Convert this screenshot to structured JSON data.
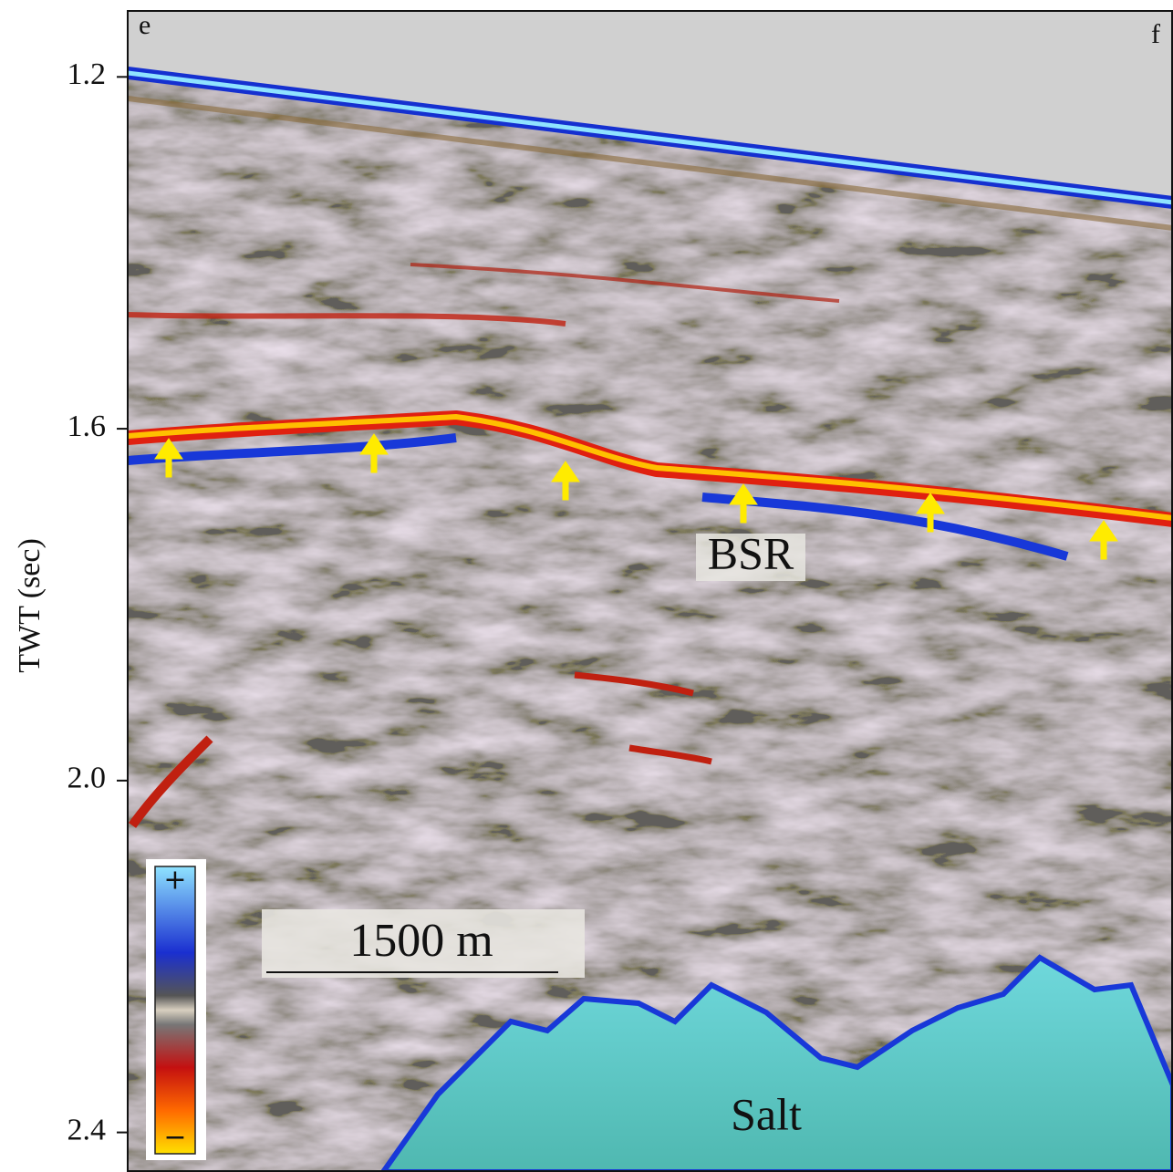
{
  "panel_labels": {
    "left": "e",
    "right": "f"
  },
  "axis": {
    "label": "TWT (sec)",
    "ylim": [
      1.125,
      2.445
    ],
    "ticks": [
      1.2,
      1.6,
      {
        "value": 2,
        "label": "2.0"
      },
      2.4
    ]
  },
  "annotations": {
    "bsr": "BSR",
    "salt": "Salt"
  },
  "scale_bar": "1500 m",
  "color_bar": {
    "positive": "+",
    "negative": "−"
  }
}
